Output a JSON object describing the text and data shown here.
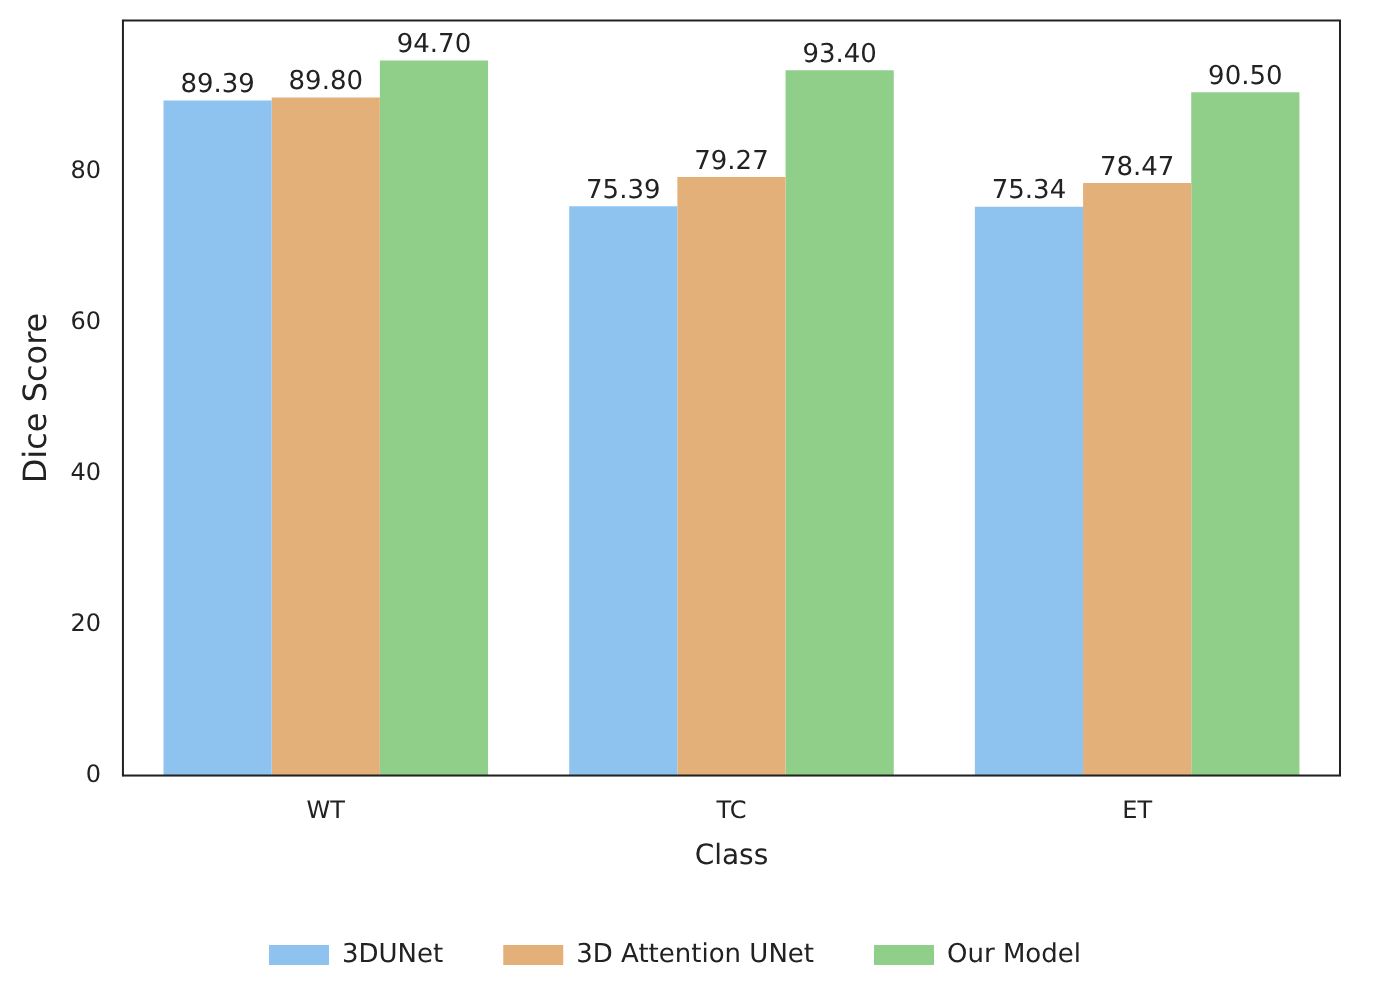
{
  "chart_data": {
    "type": "bar",
    "xlabel": "Class",
    "ylabel": "Dice Score",
    "categories": [
      "WT",
      "TC",
      "ET"
    ],
    "series": [
      {
        "name": "3DUNet",
        "color": "#8ec3ef",
        "values": [
          89.39,
          75.39,
          75.34
        ]
      },
      {
        "name": "3D Attention UNet",
        "color": "#e4b07a",
        "values": [
          89.8,
          79.27,
          78.47
        ]
      },
      {
        "name": "Our Model",
        "color": "#8fcf8a",
        "values": [
          94.7,
          93.4,
          90.5
        ]
      }
    ],
    "value_labels": [
      [
        "89.39",
        "75.39",
        "75.34"
      ],
      [
        "89.80",
        "79.27",
        "78.47"
      ],
      [
        "94.70",
        "93.40",
        "90.50"
      ]
    ],
    "ylim": [
      0,
      100
    ],
    "yticks": [
      0,
      20,
      40,
      60,
      80
    ],
    "grid": false,
    "legend": "bottom"
  }
}
